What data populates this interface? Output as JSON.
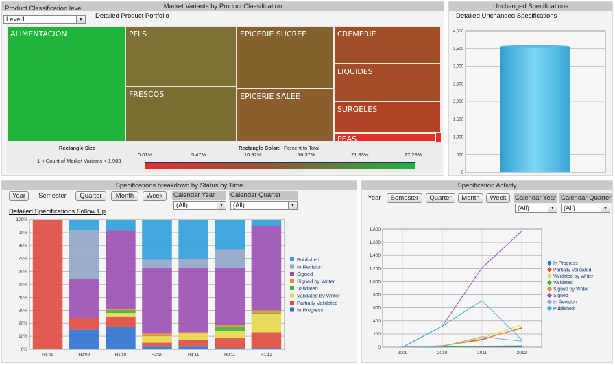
{
  "treemap_panel": {
    "title": "Market Variants by Product Classification",
    "classification_label": "Product Classification level",
    "level_value": "Level1",
    "detail_link": "Detailed Product Portfolio",
    "tiles": [
      {
        "label": "ALIMENTACION",
        "color": "#21b43a"
      },
      {
        "label": "PFLS",
        "color": "#7c7034"
      },
      {
        "label": "FRESCOS",
        "color": "#7b6c31"
      },
      {
        "label": "EPICERIE SUCREE",
        "color": "#85612d"
      },
      {
        "label": "EPICERIE SALEE",
        "color": "#8a5e2d"
      },
      {
        "label": "CREMERIE",
        "color": "#a14f27"
      },
      {
        "label": "LIQUIDES",
        "color": "#a44c27"
      },
      {
        "label": "SURGELES",
        "color": "#b04526"
      },
      {
        "label": "PEAS",
        "color": "#e2312a"
      }
    ],
    "footer": {
      "size_title": "Rectangle Size",
      "size_desc": "1 < Count of Market Variants < 1,983",
      "color_title": "Rectangle Color:",
      "color_desc": "Percent to Total",
      "scale": [
        "0.01%",
        "5.47%",
        "10.92%",
        "16.37%",
        "21.83%",
        "27.28%"
      ]
    }
  },
  "unchanged_panel": {
    "title": "Unchanged Specifications",
    "detail_link": "Detailed Unchanged Specifications",
    "y_ticks": [
      "4,000",
      "3,500",
      "3,000",
      "2,500",
      "2,000",
      "1,500",
      "1,000",
      "500",
      "0"
    ],
    "value": 3560
  },
  "breakdown_panel": {
    "title": "Specifications breakdown by Status by Time",
    "tabs": [
      "Year",
      "Semester",
      "Quarter",
      "Month",
      "Week"
    ],
    "selected_tab": "Semester",
    "filter1_label": "Calendar Year",
    "filter1_value": "(All)",
    "filter2_label": "Calendar Quarter",
    "filter2_value": "(All)",
    "detail_link": "Detailed Specifications Follow Up",
    "y_ticks": [
      "100%",
      "90%",
      "80%",
      "70%",
      "60%",
      "50%",
      "40%",
      "30%",
      "20%",
      "10%",
      "0%"
    ],
    "legend": [
      {
        "name": "Published",
        "color": "#2f9fdc"
      },
      {
        "name": "In Revision",
        "color": "#93a6c8"
      },
      {
        "name": "Signed",
        "color": "#9a4fb4"
      },
      {
        "name": "Signed by Writer",
        "color": "#f0892a"
      },
      {
        "name": "Validated",
        "color": "#3cb33c"
      },
      {
        "name": "Validated by Writer",
        "color": "#e8d84a"
      },
      {
        "name": "Partially Validated",
        "color": "#e04a3f"
      },
      {
        "name": "In Progress",
        "color": "#2e72d2"
      }
    ]
  },
  "activity_panel": {
    "title": "Specification Activity",
    "tabs": [
      "Year",
      "Semester",
      "Quarter",
      "Month",
      "Week"
    ],
    "selected_tab": "Year",
    "filter1_label": "Calendar Year",
    "filter1_value": "(All)",
    "filter2_label": "Calendar Quarter",
    "filter2_value": "(All)",
    "legend": [
      {
        "name": "In Progress",
        "color": "#2e72d2"
      },
      {
        "name": "Partially Validated",
        "color": "#e04a3f"
      },
      {
        "name": "Validated by Writer",
        "color": "#e8d84a"
      },
      {
        "name": "Validated",
        "color": "#3cb33c"
      },
      {
        "name": "Signed by Writer",
        "color": "#f0892a"
      },
      {
        "name": "Signed",
        "color": "#9a4fb4"
      },
      {
        "name": "In Revision",
        "color": "#93a6c8"
      },
      {
        "name": "Published",
        "color": "#2fb0e8"
      }
    ]
  },
  "chart_data": [
    {
      "type": "bar",
      "title": "Unchanged Specifications",
      "categories": [
        ""
      ],
      "values": [
        3560
      ],
      "ylim": [
        0,
        4000
      ]
    },
    {
      "type": "bar",
      "title": "Specifications breakdown by Status by Time",
      "stacked": true,
      "ylim": [
        0,
        100
      ],
      "categories": [
        "H1'09",
        "H2'09",
        "H1'10",
        "H2'10",
        "H1'11",
        "H2'11",
        "H1'12"
      ],
      "series": [
        {
          "name": "In Progress",
          "values": [
            0,
            15,
            17,
            2,
            2,
            1,
            1
          ]
        },
        {
          "name": "Partially Validated",
          "values": [
            100,
            9,
            8,
            3,
            5,
            8,
            12
          ]
        },
        {
          "name": "Validated by Writer",
          "values": [
            0,
            0,
            3,
            5,
            5,
            5,
            14
          ]
        },
        {
          "name": "Validated",
          "values": [
            0,
            0,
            2,
            0,
            0,
            3,
            1
          ]
        },
        {
          "name": "Signed by Writer",
          "values": [
            0,
            0,
            1,
            2,
            1,
            2,
            2
          ]
        },
        {
          "name": "Signed",
          "values": [
            0,
            30,
            61,
            51,
            50,
            44,
            65
          ]
        },
        {
          "name": "In Revision",
          "values": [
            0,
            38,
            0,
            6,
            7,
            14,
            0
          ]
        },
        {
          "name": "Published",
          "values": [
            0,
            8,
            8,
            31,
            30,
            23,
            5
          ]
        }
      ]
    },
    {
      "type": "line",
      "title": "Specification Activity",
      "x": [
        "2009",
        "2010",
        "2011",
        "2012"
      ],
      "ylim": [
        0,
        1800
      ],
      "series": [
        {
          "name": "In Progress",
          "values": [
            0,
            5,
            10,
            5
          ]
        },
        {
          "name": "Partially Validated",
          "values": [
            0,
            20,
            120,
            290
          ]
        },
        {
          "name": "Validated by Writer",
          "values": [
            0,
            10,
            140,
            340
          ]
        },
        {
          "name": "Validated",
          "values": [
            0,
            5,
            15,
            20
          ]
        },
        {
          "name": "Signed by Writer",
          "values": [
            0,
            20,
            110,
            300
          ]
        },
        {
          "name": "Signed",
          "values": [
            0,
            320,
            1210,
            1770
          ]
        },
        {
          "name": "In Revision",
          "values": [
            0,
            10,
            160,
            90
          ]
        },
        {
          "name": "Published",
          "values": [
            0,
            320,
            710,
            110
          ]
        }
      ]
    }
  ]
}
